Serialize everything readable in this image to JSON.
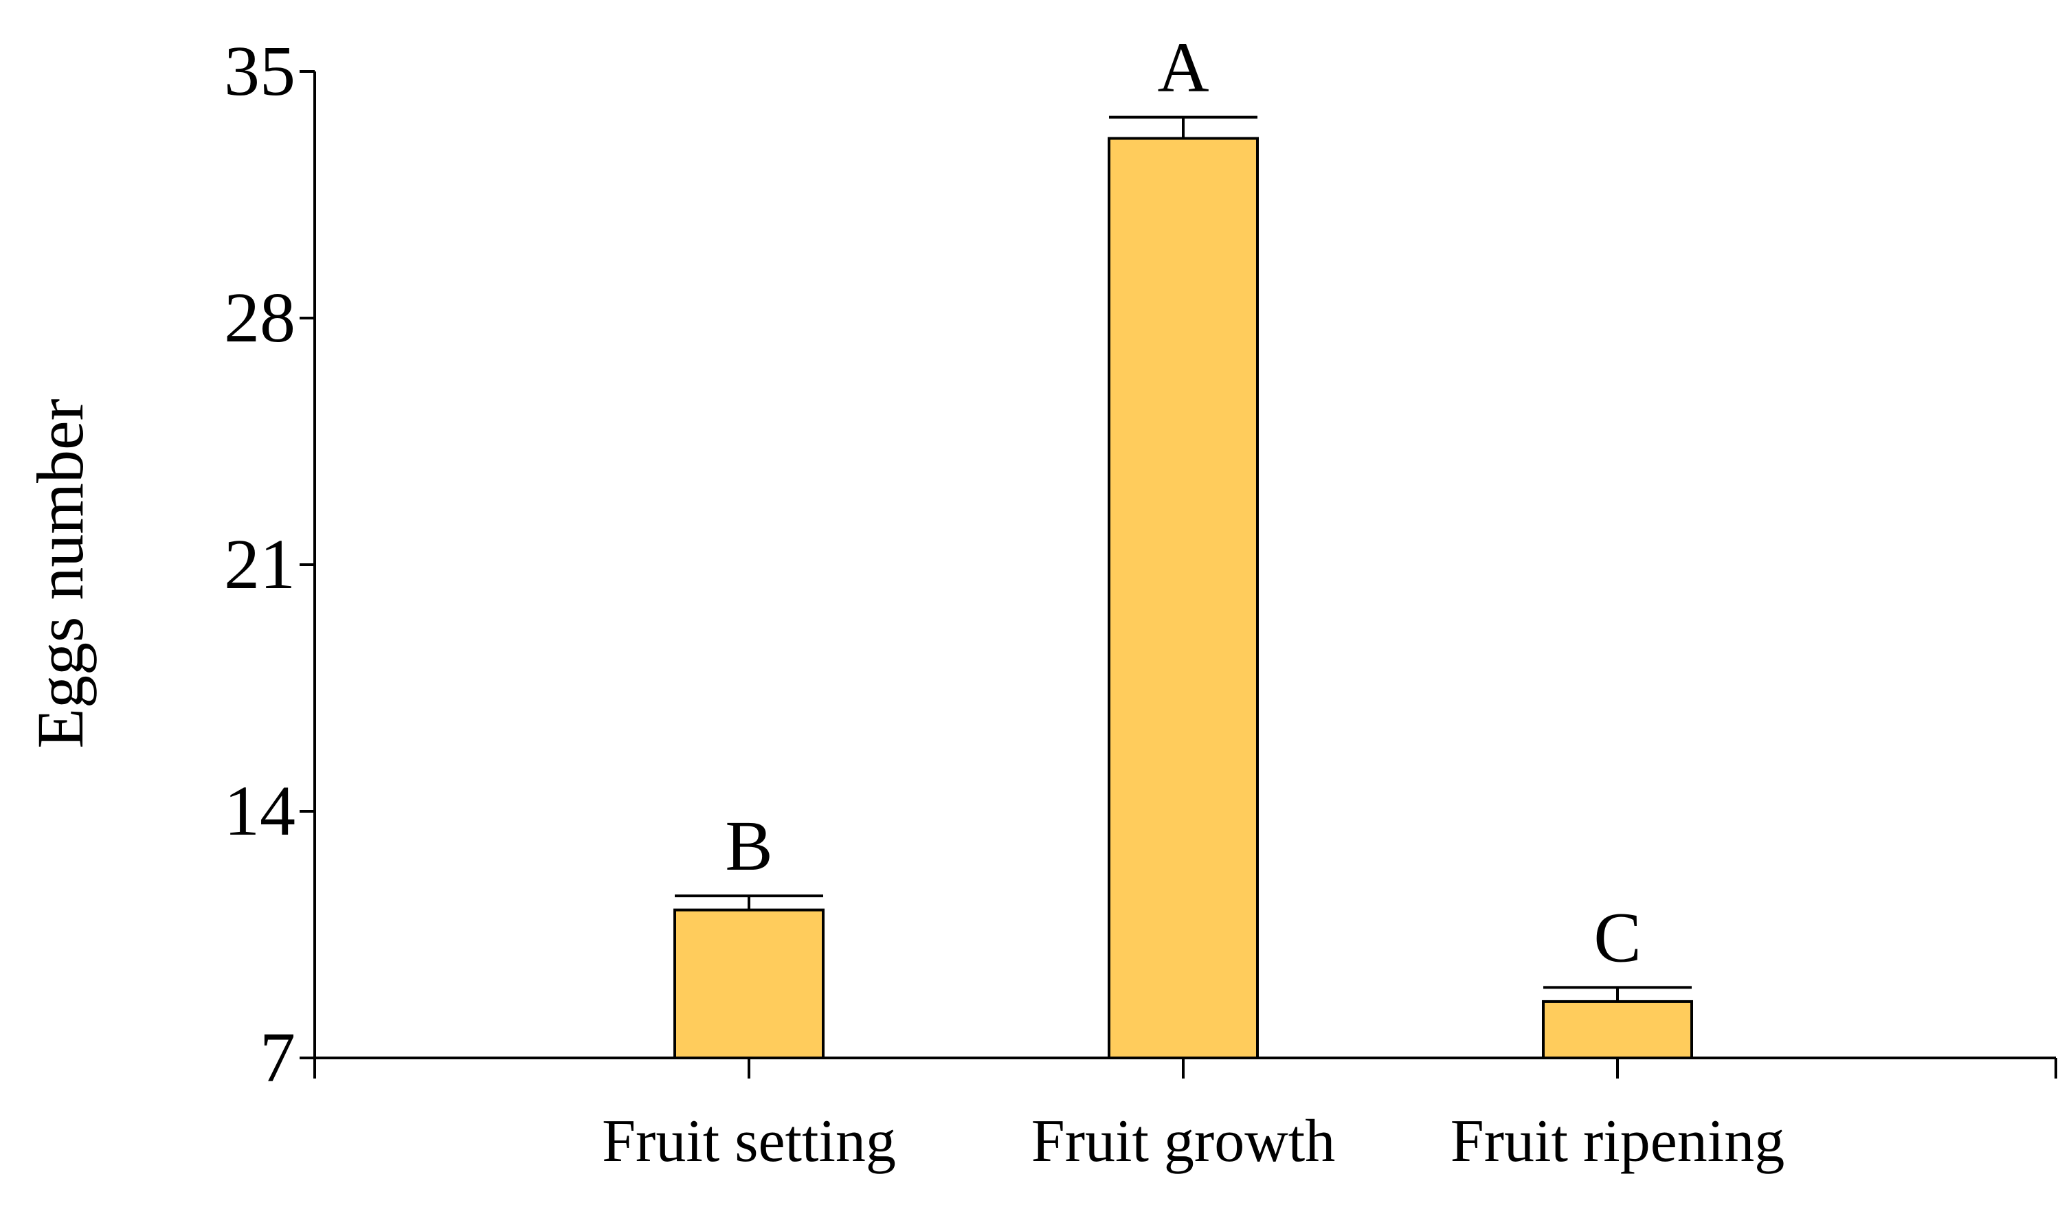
{
  "chart_data": {
    "type": "bar",
    "categories": [
      "Fruit setting",
      "Fruit growth",
      "Fruit ripening"
    ],
    "values": [
      11.2,
      33.1,
      8.6
    ],
    "errors": [
      0.4,
      0.6,
      0.4
    ],
    "significance_labels": [
      "B",
      "A",
      "C"
    ],
    "xlabel": "",
    "ylabel": "Eggs number",
    "ylim": [
      7,
      35
    ],
    "yticks": [
      7,
      14,
      21,
      28,
      35
    ],
    "grid": false,
    "colors": {
      "bar_fill": "#FFCC5C",
      "bar_stroke": "#000000",
      "axis": "#000000"
    }
  }
}
